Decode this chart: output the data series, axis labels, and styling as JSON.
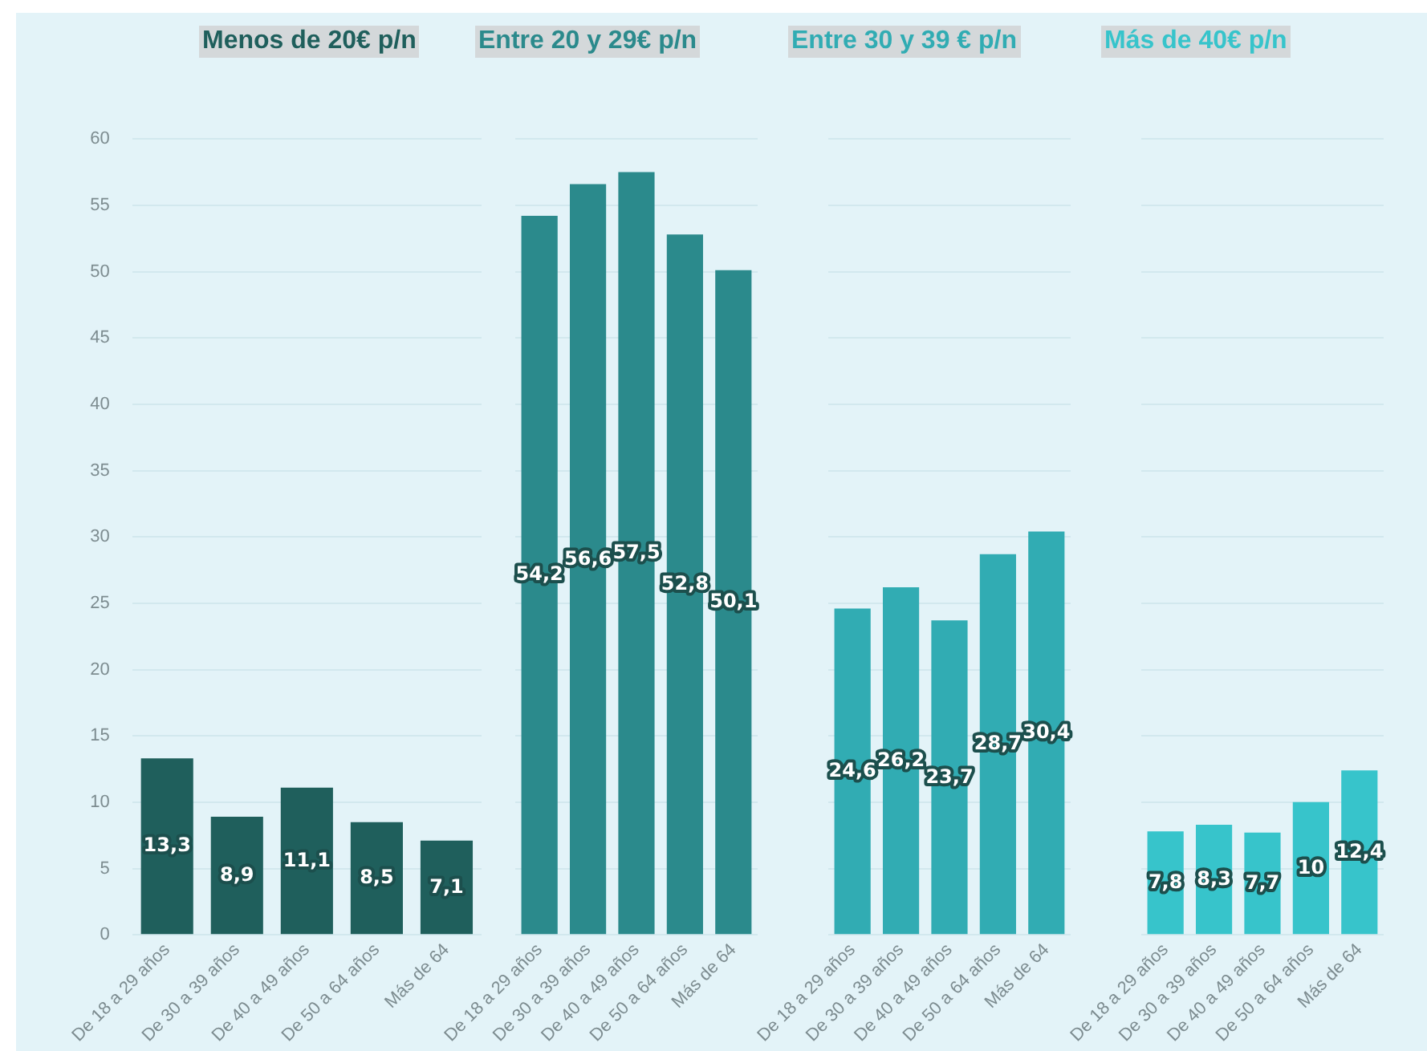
{
  "chart_data": [
    {
      "type": "bar",
      "title": "Menos de 20€ p/n",
      "categories": [
        "De 18 a 29 años",
        "De 30 a 39 años",
        "De 40 a 49 años",
        "De 50 a 64 años",
        "Más de 64"
      ],
      "values": [
        13.3,
        8.9,
        11.1,
        8.5,
        7.1
      ],
      "value_labels": [
        "13,3",
        "8,9",
        "11,1",
        "8,5",
        "7,1"
      ],
      "color": "#1f5f5c",
      "ylim": [
        0,
        60
      ],
      "yticks": [
        0,
        5,
        10,
        15,
        20,
        25,
        30,
        35,
        40,
        45,
        50,
        55,
        60
      ],
      "grid": "y"
    },
    {
      "type": "bar",
      "title": "Entre 20 y 29€ p/n",
      "categories": [
        "De 18 a 29 años",
        "De 30 a 39 años",
        "De 40 a 49 años",
        "De 50 a 64 años",
        "Más de 64"
      ],
      "values": [
        54.2,
        56.6,
        57.5,
        52.8,
        50.1
      ],
      "value_labels": [
        "54,2",
        "56,6",
        "57,5",
        "52,8",
        "50,1"
      ],
      "color": "#2b8a8c",
      "ylim": [
        0,
        60
      ],
      "yticks": [
        0,
        5,
        10,
        15,
        20,
        25,
        30,
        35,
        40,
        45,
        50,
        55,
        60
      ],
      "grid": "y",
      "tick_labels": "x"
    },
    {
      "type": "bar",
      "title": "Entre 30 y 39 € p/n",
      "categories": [
        "De 18 a 29 años",
        "De 30 a 39 años",
        "De 40 a 49 años",
        "De 50 a 64 años",
        "Más de 64"
      ],
      "values": [
        24.6,
        26.2,
        23.7,
        28.7,
        30.4
      ],
      "value_labels": [
        "24,6",
        "26,2",
        "23,7",
        "28,7",
        "30,4"
      ],
      "color": "#31acb3",
      "ylim": [
        0,
        60
      ],
      "yticks": [
        0,
        5,
        10,
        15,
        20,
        25,
        30,
        35,
        40,
        45,
        50,
        55,
        60
      ],
      "grid": "y",
      "tick_labels": "x"
    },
    {
      "type": "bar",
      "title": "Más de 40€ p/n",
      "categories": [
        "De 18 a 29 años",
        "De 30 a 39 años",
        "De 40 a 49 años",
        "De 50 a 64 años",
        "Más de 64"
      ],
      "values": [
        7.8,
        8.3,
        7.7,
        10,
        12.4
      ],
      "value_labels": [
        "7,8",
        "8,3",
        "7,7",
        "10",
        "12,4"
      ],
      "color": "#37c4cb",
      "ylim": [
        0,
        60
      ],
      "yticks": [
        0,
        5,
        10,
        15,
        20,
        25,
        30,
        35,
        40,
        45,
        50,
        55,
        60
      ],
      "grid": "y",
      "tick_labels": "x"
    }
  ]
}
